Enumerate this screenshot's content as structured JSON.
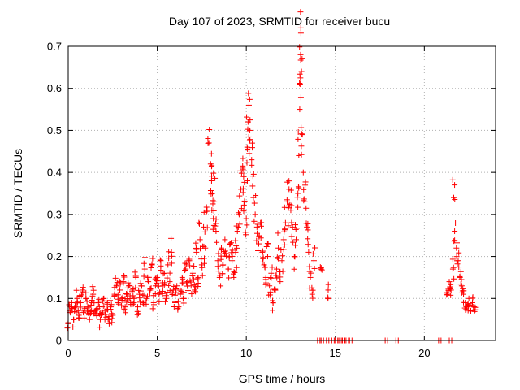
{
  "chart_data": {
    "type": "scatter",
    "title": "Day 107 of 2023, SRMTID for receiver bucu",
    "xlabel": "GPS time / hours",
    "ylabel": "SRMTID / TECUs",
    "xlim": [
      0,
      24
    ],
    "ylim": [
      0,
      0.7
    ],
    "x_ticks": [
      0,
      5,
      10,
      15,
      20
    ],
    "x_tick_labels": [
      "0",
      "5",
      "10",
      "15",
      "20"
    ],
    "y_ticks": [
      0,
      0.1,
      0.2,
      0.3,
      0.4,
      0.5,
      0.6,
      0.7
    ],
    "y_tick_labels": [
      "0",
      "0.1",
      "0.2",
      "0.3",
      "0.4",
      "0.5",
      "0.6",
      "0.7"
    ],
    "grid": true,
    "marker": "+",
    "series": [
      {
        "name": "SRMTID",
        "color": "#ff0000",
        "points": [
          [
            0.0,
            0.04
          ],
          [
            0.1,
            0.07
          ],
          [
            0.2,
            0.09
          ],
          [
            0.3,
            0.05
          ],
          [
            0.4,
            0.08
          ],
          [
            0.5,
            0.1
          ],
          [
            0.6,
            0.06
          ],
          [
            0.7,
            0.09
          ],
          [
            0.8,
            0.12
          ],
          [
            0.9,
            0.07
          ],
          [
            1.0,
            0.1
          ],
          [
            1.1,
            0.08
          ],
          [
            1.2,
            0.05
          ],
          [
            1.3,
            0.09
          ],
          [
            1.4,
            0.11
          ],
          [
            1.5,
            0.07
          ],
          [
            1.6,
            0.06
          ],
          [
            1.7,
            0.09
          ],
          [
            1.8,
            0.05
          ],
          [
            1.9,
            0.08
          ],
          [
            2.0,
            0.1
          ],
          [
            2.1,
            0.07
          ],
          [
            2.2,
            0.09
          ],
          [
            2.3,
            0.04
          ],
          [
            2.4,
            0.08
          ],
          [
            2.5,
            0.06
          ],
          [
            2.6,
            0.11
          ],
          [
            2.7,
            0.13
          ],
          [
            2.8,
            0.09
          ],
          [
            2.9,
            0.12
          ],
          [
            3.0,
            0.1
          ],
          [
            3.1,
            0.14
          ],
          [
            3.2,
            0.08
          ],
          [
            3.3,
            0.11
          ],
          [
            3.4,
            0.13
          ],
          [
            3.5,
            0.09
          ],
          [
            3.6,
            0.12
          ],
          [
            3.7,
            0.1
          ],
          [
            3.8,
            0.15
          ],
          [
            3.9,
            0.08
          ],
          [
            4.0,
            0.11
          ],
          [
            4.1,
            0.13
          ],
          [
            4.2,
            0.09
          ],
          [
            4.3,
            0.17
          ],
          [
            4.4,
            0.1
          ],
          [
            4.5,
            0.14
          ],
          [
            4.6,
            0.12
          ],
          [
            4.7,
            0.18
          ],
          [
            4.8,
            0.09
          ],
          [
            4.9,
            0.13
          ],
          [
            5.0,
            0.15
          ],
          [
            5.1,
            0.11
          ],
          [
            5.2,
            0.19
          ],
          [
            5.3,
            0.13
          ],
          [
            5.4,
            0.16
          ],
          [
            5.5,
            0.1
          ],
          [
            5.6,
            0.18
          ],
          [
            5.7,
            0.14
          ],
          [
            5.8,
            0.21
          ],
          [
            5.9,
            0.12
          ],
          [
            6.0,
            0.09
          ],
          [
            6.1,
            0.13
          ],
          [
            6.2,
            0.08
          ],
          [
            6.3,
            0.11
          ],
          [
            6.4,
            0.15
          ],
          [
            6.5,
            0.1
          ],
          [
            6.6,
            0.17
          ],
          [
            6.7,
            0.14
          ],
          [
            6.8,
            0.19
          ],
          [
            6.9,
            0.13
          ],
          [
            7.0,
            0.16
          ],
          [
            7.1,
            0.12
          ],
          [
            7.2,
            0.21
          ],
          [
            7.3,
            0.15
          ],
          [
            7.4,
            0.24
          ],
          [
            7.5,
            0.18
          ],
          [
            7.6,
            0.27
          ],
          [
            7.7,
            0.22
          ],
          [
            7.8,
            0.31
          ],
          [
            7.9,
            0.47
          ],
          [
            8.0,
            0.42
          ],
          [
            8.05,
            0.38
          ],
          [
            8.1,
            0.35
          ],
          [
            8.15,
            0.29
          ],
          [
            8.2,
            0.33
          ],
          [
            8.3,
            0.26
          ],
          [
            8.4,
            0.19
          ],
          [
            8.5,
            0.15
          ],
          [
            8.6,
            0.22
          ],
          [
            8.7,
            0.18
          ],
          [
            8.8,
            0.24
          ],
          [
            8.9,
            0.2
          ],
          [
            9.0,
            0.17
          ],
          [
            9.1,
            0.23
          ],
          [
            9.2,
            0.19
          ],
          [
            9.3,
            0.15
          ],
          [
            9.4,
            0.21
          ],
          [
            9.5,
            0.26
          ],
          [
            9.6,
            0.3
          ],
          [
            9.7,
            0.36
          ],
          [
            9.8,
            0.41
          ],
          [
            9.85,
            0.39
          ],
          [
            9.9,
            0.33
          ],
          [
            10.0,
            0.29
          ],
          [
            10.05,
            0.46
          ],
          [
            10.1,
            0.52
          ],
          [
            10.15,
            0.56
          ],
          [
            10.2,
            0.5
          ],
          [
            10.3,
            0.43
          ],
          [
            10.4,
            0.34
          ],
          [
            10.5,
            0.3
          ],
          [
            10.6,
            0.27
          ],
          [
            10.7,
            0.23
          ],
          [
            10.8,
            0.28
          ],
          [
            10.9,
            0.21
          ],
          [
            11.0,
            0.18
          ],
          [
            11.1,
            0.15
          ],
          [
            11.2,
            0.2
          ],
          [
            11.3,
            0.13
          ],
          [
            11.4,
            0.16
          ],
          [
            11.5,
            0.09
          ],
          [
            11.6,
            0.12
          ],
          [
            11.7,
            0.17
          ],
          [
            11.8,
            0.22
          ],
          [
            11.9,
            0.14
          ],
          [
            12.0,
            0.19
          ],
          [
            12.1,
            0.24
          ],
          [
            12.2,
            0.28
          ],
          [
            12.3,
            0.33
          ],
          [
            12.4,
            0.36
          ],
          [
            12.5,
            0.31
          ],
          [
            12.6,
            0.27
          ],
          [
            12.7,
            0.2
          ],
          [
            12.8,
            0.24
          ],
          [
            12.9,
            0.35
          ],
          [
            12.95,
            0.44
          ],
          [
            13.0,
            0.55
          ],
          [
            13.02,
            0.61
          ],
          [
            13.05,
            0.68
          ],
          [
            13.1,
            0.64
          ],
          [
            13.15,
            0.49
          ],
          [
            13.2,
            0.4
          ],
          [
            13.3,
            0.33
          ],
          [
            13.4,
            0.27
          ],
          [
            13.5,
            0.21
          ],
          [
            13.6,
            0.15
          ],
          [
            13.7,
            0.11
          ],
          [
            13.8,
            0.19
          ],
          [
            14.2,
            0.17
          ],
          [
            14.6,
            0.12
          ],
          [
            21.3,
            0.11
          ],
          [
            21.4,
            0.14
          ],
          [
            21.5,
            0.12
          ],
          [
            21.6,
            0.17
          ],
          [
            21.65,
            0.34
          ],
          [
            21.7,
            0.26
          ],
          [
            21.8,
            0.22
          ],
          [
            21.9,
            0.19
          ],
          [
            22.0,
            0.15
          ],
          [
            22.1,
            0.13
          ],
          [
            22.2,
            0.11
          ],
          [
            22.3,
            0.09
          ],
          [
            22.4,
            0.08
          ],
          [
            22.5,
            0.1
          ],
          [
            22.6,
            0.07
          ],
          [
            22.7,
            0.09
          ],
          [
            22.8,
            0.08
          ]
        ]
      }
    ],
    "zero_points_x": [
      14.0,
      14.2,
      14.5,
      14.8,
      15.0,
      15.2,
      15.4,
      15.6,
      15.8,
      17.8,
      18.4,
      20.8,
      21.4
    ]
  }
}
